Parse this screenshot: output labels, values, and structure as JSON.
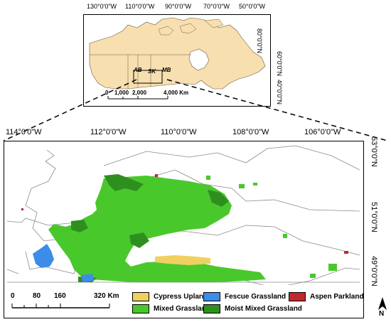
{
  "inset": {
    "lon_labels": [
      "130°0'0\"W",
      "110°0'0\"W",
      "90°0'0\"W",
      "70°0'0\"W",
      "50°0'0\"W"
    ],
    "lat_labels": [
      "80°0'0\"N",
      "60°0'0\"N",
      "40°0'0\"N"
    ],
    "province_labels": [
      "AB",
      "SK",
      "MB"
    ],
    "scale_labels": [
      "0",
      "1,000",
      "2,000",
      "4,000 Km"
    ]
  },
  "main": {
    "lon_labels": [
      "114°0'0\"W",
      "112°0'0\"W",
      "110°0'0\"W",
      "108°0'0\"W",
      "106°0'0\"W"
    ],
    "lat_labels": [
      "53°0'0\"N",
      "51°0'0\"N",
      "49°0'0\"N"
    ],
    "scale_labels": [
      "0",
      "80",
      "160",
      "320 Km"
    ],
    "north_arrow": "N"
  },
  "legend": [
    {
      "label": "Cypress Upland",
      "color": "#f0d060"
    },
    {
      "label": "Fescue Grassland",
      "color": "#3c8ce8"
    },
    {
      "label": "Aspen Parkland",
      "color": "#c0282c"
    },
    {
      "label": "Mixed Grassland",
      "color": "#49c82c"
    },
    {
      "label": "Moist Mixed Grassland",
      "color": "#2f8f1e"
    }
  ]
}
